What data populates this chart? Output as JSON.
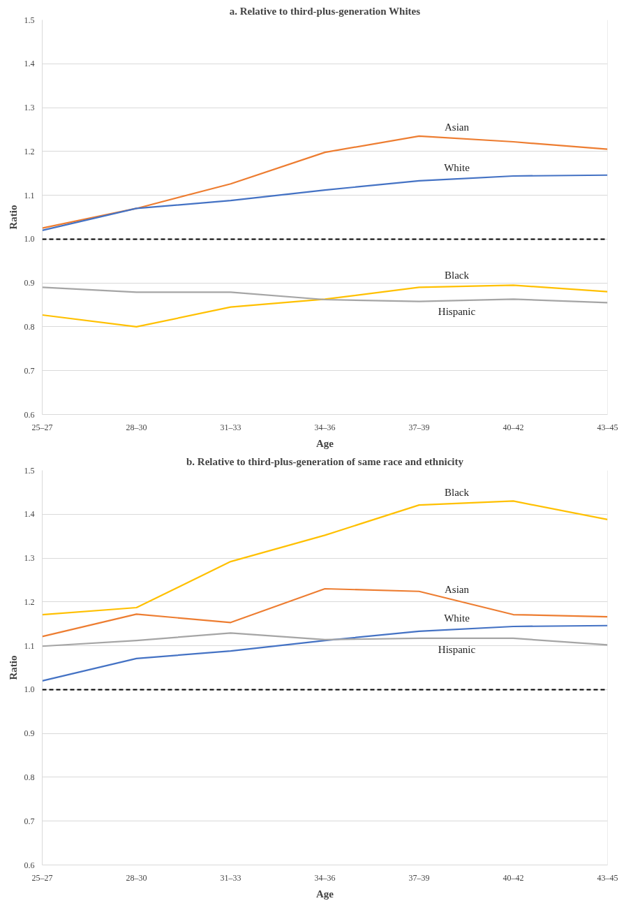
{
  "chart_data": [
    {
      "type": "line",
      "title": "a. Relative to third-plus-generation Whites",
      "xlabel": "Age",
      "ylabel": "Ratio",
      "categories": [
        "25–27",
        "28–30",
        "31–33",
        "34–36",
        "37–39",
        "40–42",
        "43–45"
      ],
      "ylim": [
        0.6,
        1.5
      ],
      "yticks": [
        {
          "value": 0.6,
          "label": "0.6"
        },
        {
          "value": 0.7,
          "label": "0.7"
        },
        {
          "value": 0.8,
          "label": "0.8"
        },
        {
          "value": 0.9,
          "label": "0.9"
        },
        {
          "value": 1.0,
          "label": "1.0"
        },
        {
          "value": 1.1,
          "label": "1.1"
        },
        {
          "value": 1.2,
          "label": "1.2"
        },
        {
          "value": 1.3,
          "label": "1.3"
        },
        {
          "value": 1.4,
          "label": "1.4"
        },
        {
          "value": 1.5,
          "label": "1.5"
        }
      ],
      "grid": "y",
      "marker": "none",
      "line_style": "solid",
      "ref_lines": [
        {
          "axis": "y",
          "value": 1.0,
          "color": "#000000",
          "line_style": "dashed"
        }
      ],
      "series": [
        {
          "name": "Asian",
          "color": "#ed7d31",
          "values": [
            1.025,
            1.07,
            1.126,
            1.198,
            1.235,
            1.222,
            1.205
          ]
        },
        {
          "name": "White",
          "color": "#4472c4",
          "values": [
            1.02,
            1.07,
            1.088,
            1.112,
            1.133,
            1.144,
            1.146
          ]
        },
        {
          "name": "Black",
          "color": "#ffc000",
          "values": [
            0.827,
            0.8,
            0.845,
            0.863,
            0.89,
            0.895,
            0.88
          ]
        },
        {
          "name": "Hispanic",
          "color": "#a5a5a5",
          "values": [
            0.89,
            0.879,
            0.879,
            0.862,
            0.858,
            0.863,
            0.855
          ]
        }
      ]
    },
    {
      "type": "line",
      "title": "b. Relative to third-plus-generation of same race and ethnicity",
      "xlabel": "Age",
      "ylabel": "Ratio",
      "categories": [
        "25–27",
        "28–30",
        "31–33",
        "34–36",
        "37–39",
        "40–42",
        "43–45"
      ],
      "ylim": [
        0.6,
        1.5
      ],
      "yticks": [
        {
          "value": 0.6,
          "label": "0.6"
        },
        {
          "value": 0.7,
          "label": "0.7"
        },
        {
          "value": 0.8,
          "label": "0.8"
        },
        {
          "value": 0.9,
          "label": "0.9"
        },
        {
          "value": 1.0,
          "label": "1.0"
        },
        {
          "value": 1.1,
          "label": "1.1"
        },
        {
          "value": 1.2,
          "label": "1.2"
        },
        {
          "value": 1.3,
          "label": "1.3"
        },
        {
          "value": 1.4,
          "label": "1.4"
        },
        {
          "value": 1.5,
          "label": "1.5"
        }
      ],
      "grid": "y",
      "marker": "none",
      "line_style": "solid",
      "ref_lines": [
        {
          "axis": "y",
          "value": 1.0,
          "color": "#000000",
          "line_style": "dashed"
        }
      ],
      "series": [
        {
          "name": "Black",
          "color": "#ffc000",
          "values": [
            1.171,
            1.187,
            1.292,
            1.352,
            1.421,
            1.43,
            1.388
          ]
        },
        {
          "name": "Asian",
          "color": "#ed7d31",
          "values": [
            1.121,
            1.172,
            1.153,
            1.23,
            1.224,
            1.171,
            1.166
          ]
        },
        {
          "name": "White",
          "color": "#4472c4",
          "values": [
            1.02,
            1.071,
            1.088,
            1.112,
            1.133,
            1.144,
            1.146
          ]
        },
        {
          "name": "Hispanic",
          "color": "#a5a5a5",
          "values": [
            1.099,
            1.112,
            1.129,
            1.114,
            1.117,
            1.117,
            1.102
          ]
        }
      ]
    }
  ]
}
